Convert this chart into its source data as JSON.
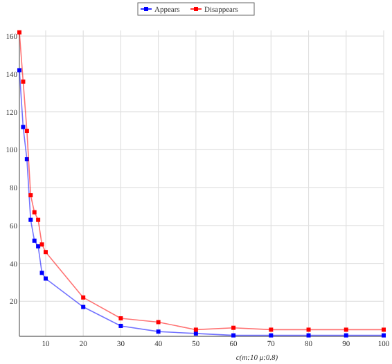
{
  "chart_data": {
    "type": "line",
    "xlabel": "c(m:10 μ:0.8)",
    "x": [
      3,
      4,
      5,
      6,
      7,
      8,
      9,
      10,
      20,
      30,
      40,
      50,
      60,
      70,
      80,
      90,
      100
    ],
    "series": [
      {
        "name": "Appears",
        "color": "#0000ff",
        "values": [
          142,
          112,
          95,
          63,
          52,
          49,
          35,
          32,
          17,
          7,
          4,
          3,
          2,
          2,
          2,
          2,
          2
        ]
      },
      {
        "name": "Disappears",
        "color": "#ff0000",
        "values": [
          162,
          136,
          110,
          76,
          67,
          63,
          50,
          46,
          22,
          11,
          9,
          5,
          6,
          5,
          5,
          5,
          5
        ]
      }
    ],
    "xlim": [
      3,
      100
    ],
    "ylim": [
      1.5,
      163
    ],
    "xticks": [
      10,
      20,
      30,
      40,
      50,
      60,
      70,
      80,
      90,
      100
    ],
    "yticks": [
      20,
      40,
      60,
      80,
      100,
      120,
      140,
      160
    ],
    "grid": true,
    "legend": "top",
    "marker": "square",
    "line_style": "solid"
  }
}
